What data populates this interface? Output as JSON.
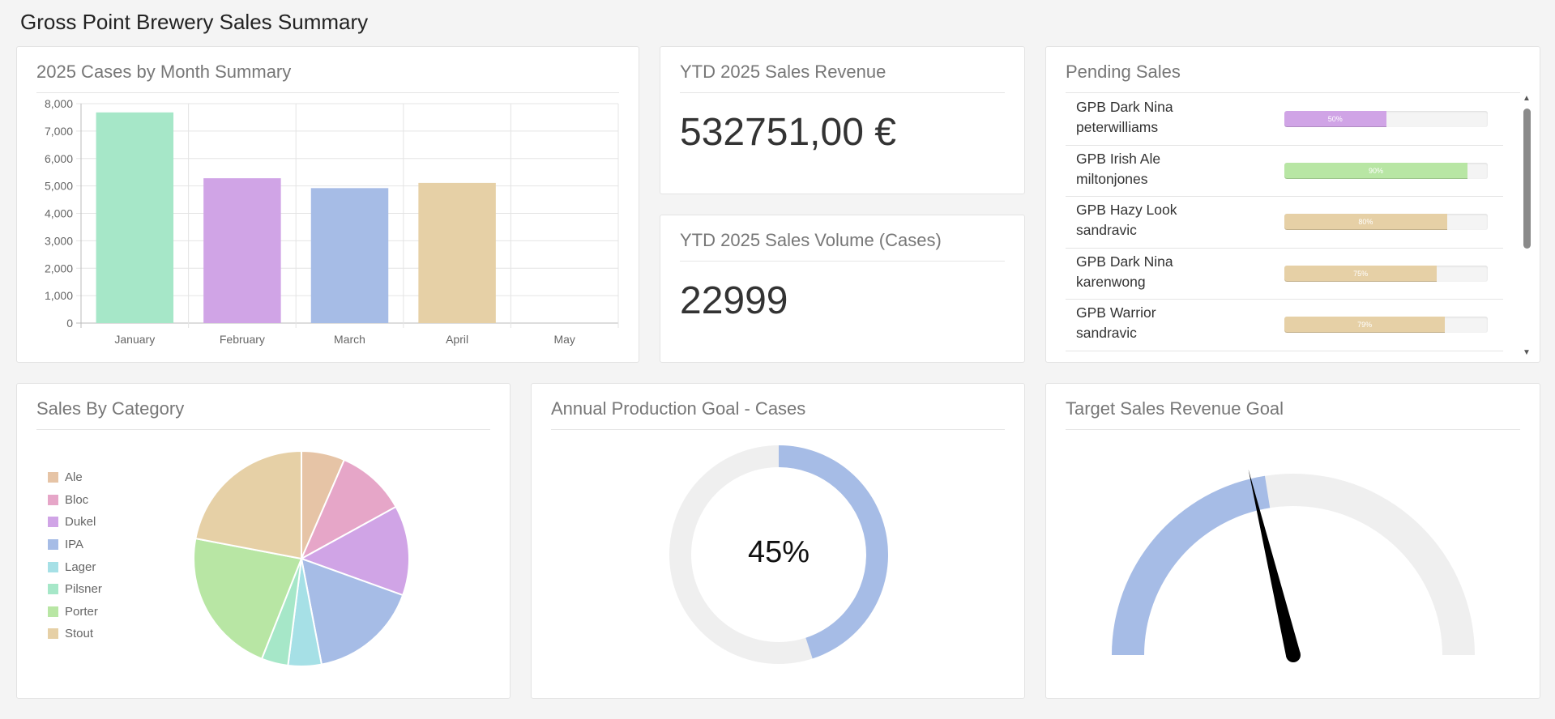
{
  "page": {
    "title": "Gross Point Brewery Sales Summary"
  },
  "cases_panel": {
    "title": "2025 Cases by Month Summary",
    "chart_data": {
      "type": "bar",
      "title": "2025 Cases by Month Summary",
      "categories": [
        "January",
        "February",
        "March",
        "April",
        "May"
      ],
      "values": [
        7680,
        5280,
        4920,
        5110,
        0
      ],
      "colors": [
        "#a6e7c8",
        "#d0a4e6",
        "#a6bce6",
        "#e6d0a6",
        "#cccccc"
      ],
      "ylim": [
        0,
        8000
      ],
      "yticks": [
        "0",
        "1,000",
        "2,000",
        "3,000",
        "4,000",
        "5,000",
        "6,000",
        "7,000",
        "8,000"
      ],
      "grid": true
    }
  },
  "revenue_panel": {
    "title": "YTD 2025 Sales Revenue",
    "value": "532751,00 €"
  },
  "volume_panel": {
    "title": "YTD 2025 Sales Volume (Cases)",
    "value": "22999"
  },
  "pending_panel": {
    "title": "Pending Sales",
    "items": [
      {
        "name": "GPB Dark Nina",
        "user": "peterwilliams",
        "percent": 50,
        "label": "50%",
        "color": "#d0a4e6"
      },
      {
        "name": "GPB Irish Ale",
        "user": "miltonjones",
        "percent": 90,
        "label": "90%",
        "color": "#b8e6a4"
      },
      {
        "name": "GPB Hazy Look",
        "user": "sandravic",
        "percent": 80,
        "label": "80%",
        "color": "#e6d0a6"
      },
      {
        "name": "GPB Dark Nina",
        "user": "karenwong",
        "percent": 75,
        "label": "75%",
        "color": "#e6d0a6"
      },
      {
        "name": "GPB Warrior",
        "user": "sandravic",
        "percent": 79,
        "label": "79%",
        "color": "#e6d0a6"
      }
    ],
    "icons": {
      "up": "scroll-up-arrow-icon",
      "down": "scroll-down-arrow-icon"
    }
  },
  "category_panel": {
    "title": "Sales By Category",
    "chart_data": {
      "type": "pie",
      "title": "Sales By Category",
      "categories": [
        "Ale",
        "Bloc",
        "Dukel",
        "IPA",
        "Lager",
        "Pilsner",
        "Porter",
        "Stout"
      ],
      "values": [
        6.5,
        10.5,
        13.5,
        16.5,
        5,
        4,
        22,
        22
      ],
      "colors": [
        "#e6c4a6",
        "#e6a6c8",
        "#d0a4e6",
        "#a6bce6",
        "#a6e0e6",
        "#a6e7c8",
        "#b8e6a4",
        "#e6d0a6"
      ],
      "legend": "left"
    }
  },
  "production_panel": {
    "title": "Annual Production Goal - Cases",
    "label": "45%",
    "chart_data": {
      "type": "donut",
      "value": 45,
      "max": 100,
      "colors": [
        "#a6bce6",
        "#efefef"
      ]
    }
  },
  "target_panel": {
    "title": "Target Sales Revenue Goal",
    "chart_data": {
      "type": "gauge",
      "value": 45,
      "max": 100,
      "colors": [
        "#a6bce6",
        "#efefef",
        "#000000"
      ]
    }
  }
}
